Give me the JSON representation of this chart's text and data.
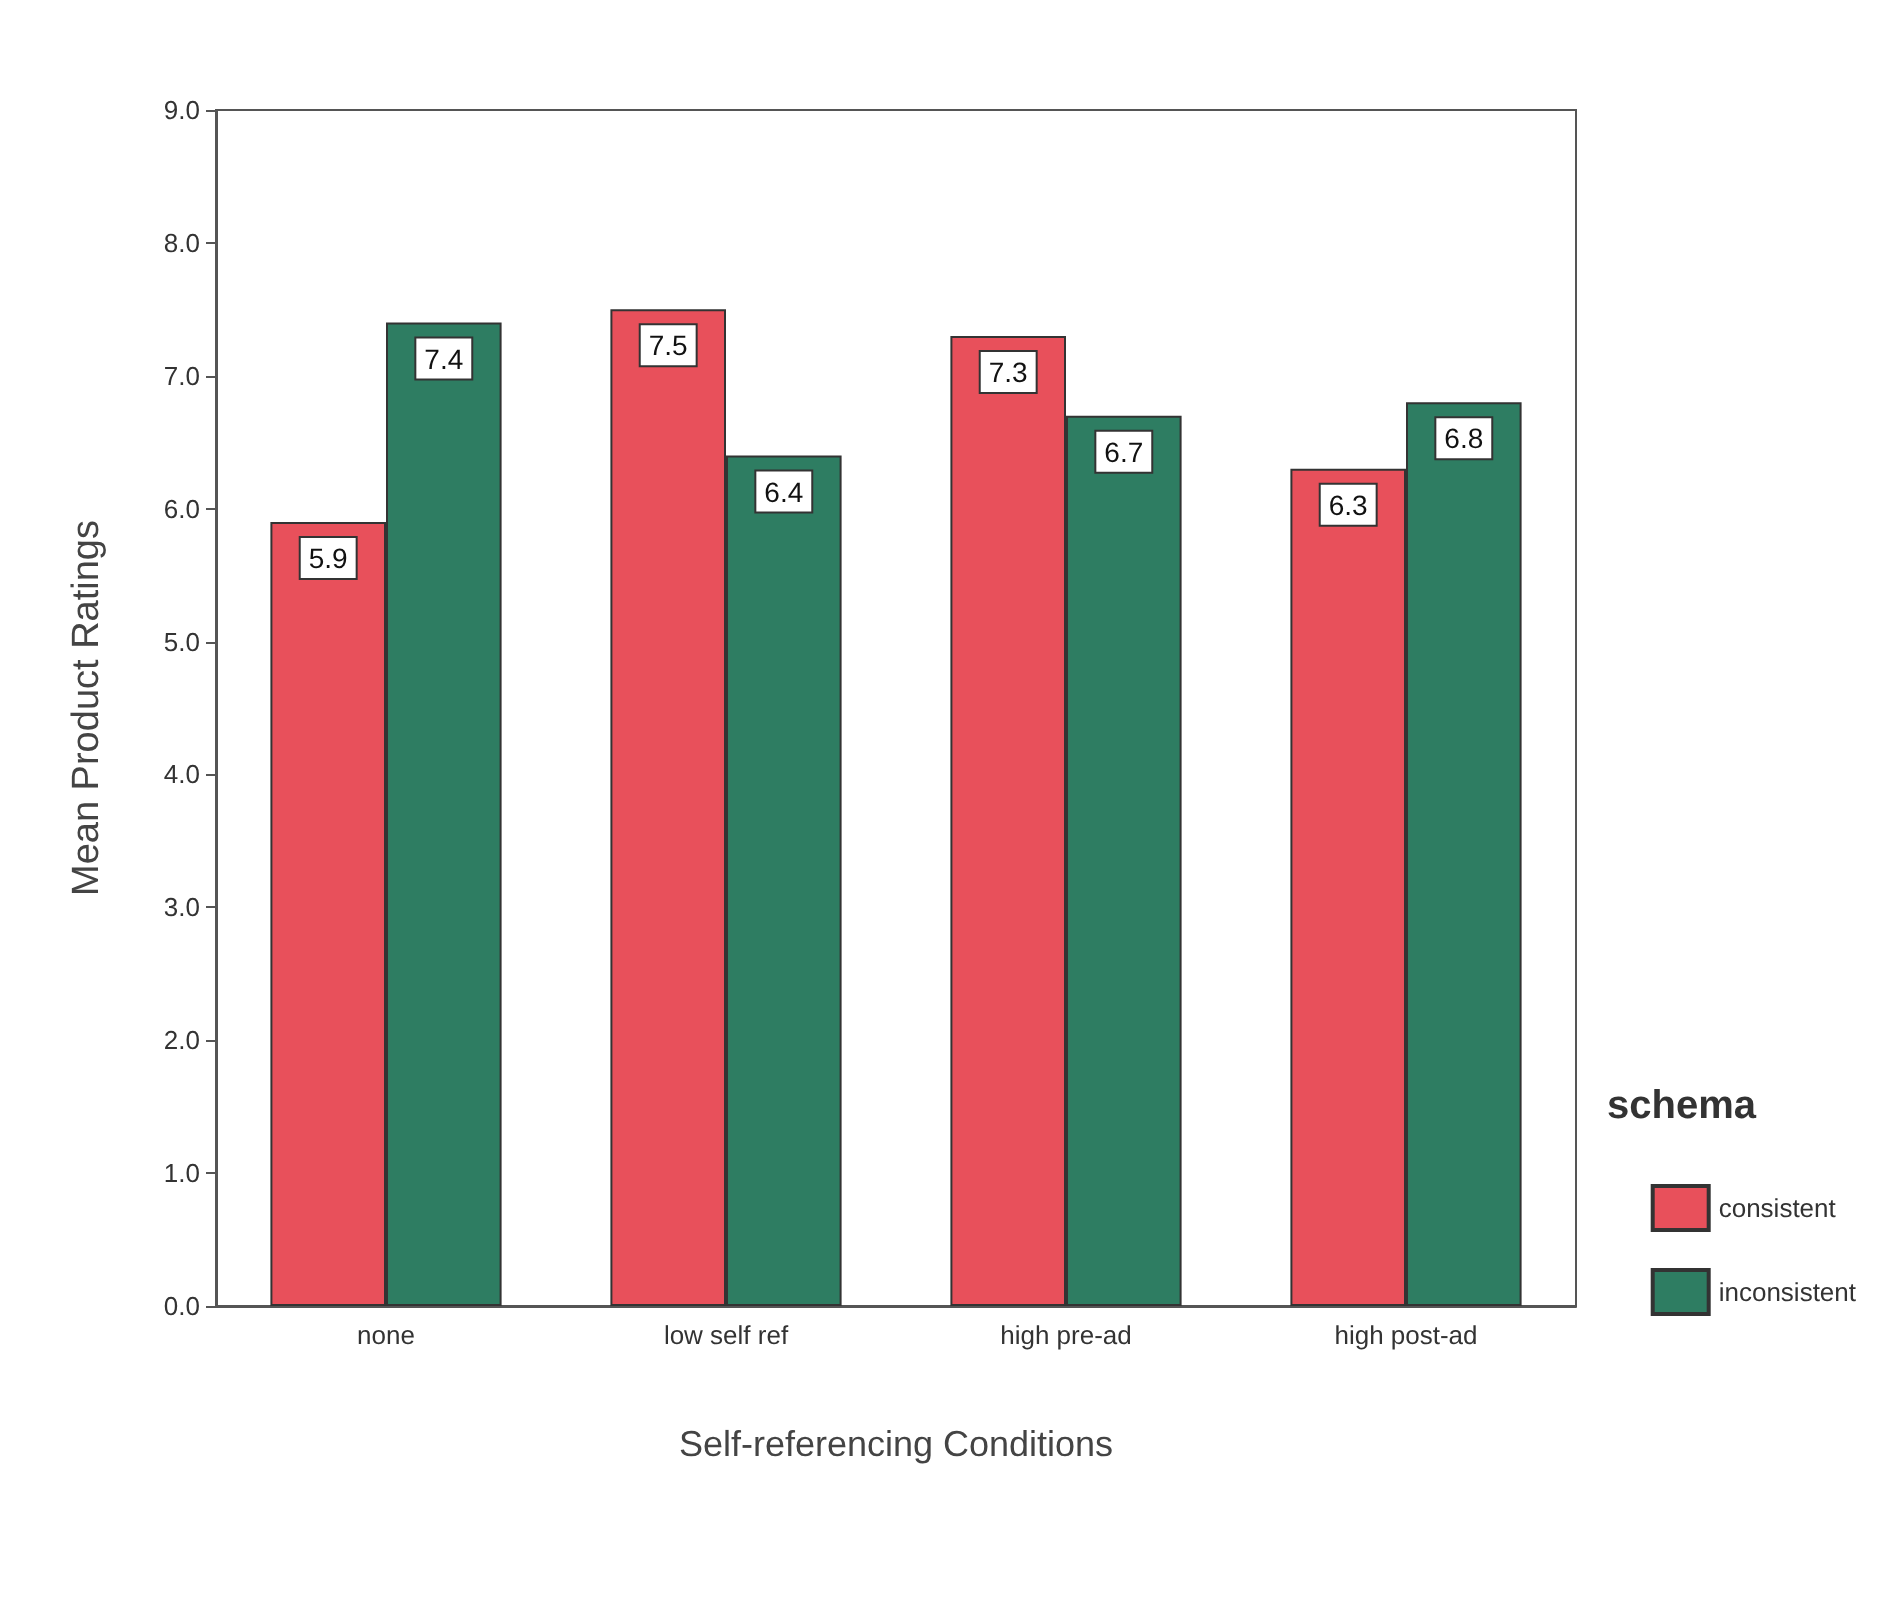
{
  "chart_data": {
    "type": "bar",
    "xlabel": "Self-referencing Conditions",
    "ylabel": "Mean Product Ratings",
    "legend_title": "schema",
    "legend": "bottom right",
    "categories": [
      "none",
      "low self ref",
      "high pre-ad",
      "high post-ad"
    ],
    "series": [
      {
        "name": "consistent",
        "color": "#e8505b",
        "values": [
          5.9,
          7.5,
          7.3,
          6.3
        ]
      },
      {
        "name": "inconsistent",
        "color": "#2e7d62",
        "values": [
          7.4,
          6.4,
          6.7,
          6.8
        ]
      }
    ],
    "ylim": [
      0,
      9
    ],
    "yticks": [
      {
        "value": 0,
        "label": "0.0"
      },
      {
        "value": 1,
        "label": "1.0"
      },
      {
        "value": 2,
        "label": "2.0"
      },
      {
        "value": 3,
        "label": "3.0"
      },
      {
        "value": 4,
        "label": "4.0"
      },
      {
        "value": 5,
        "label": "5.0"
      },
      {
        "value": 6,
        "label": "6.0"
      },
      {
        "value": 7,
        "label": "7.0"
      },
      {
        "value": 8,
        "label": "8.0"
      },
      {
        "value": 9,
        "label": "9.0"
      }
    ],
    "grid": false,
    "data_labels": true
  }
}
